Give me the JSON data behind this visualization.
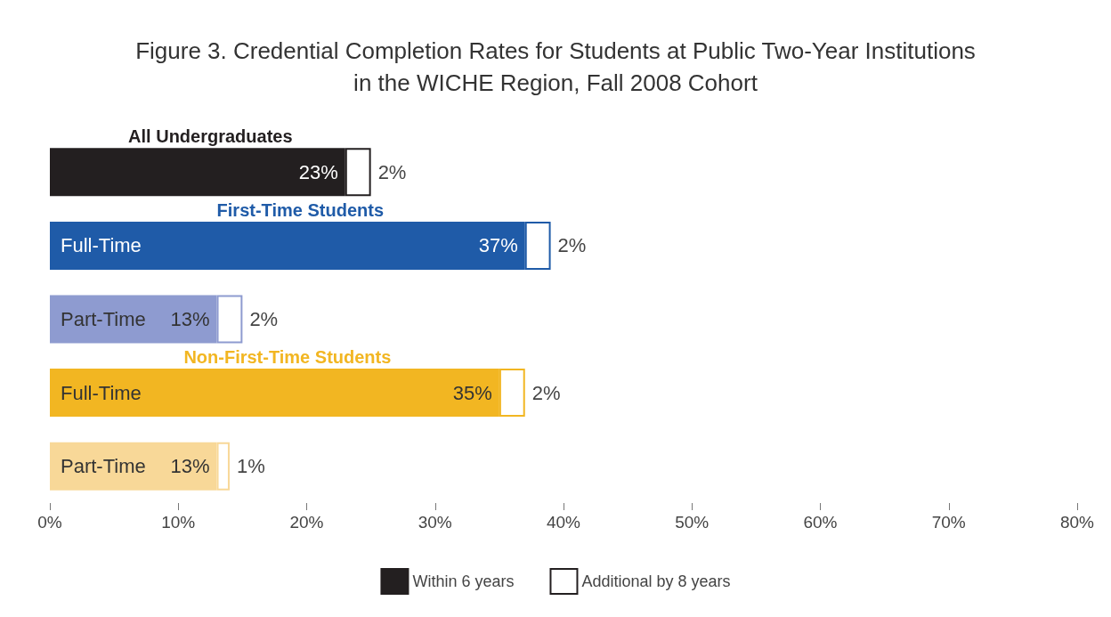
{
  "chart_data": {
    "type": "bar",
    "orientation": "horizontal",
    "stacked": true,
    "title": "Figure 3. Credential Completion Rates for Students at Public Two-Year Institutions\nin the WICHE Region, Fall 2008 Cohort",
    "categories": [
      null,
      "Full-Time",
      "Part-Time",
      "Full-Time",
      "Part-Time"
    ],
    "annotations": [
      "All Undergraduates",
      "First-Time Students",
      "Non-First-Time Students"
    ],
    "series": [
      {
        "name": "Within 6 years",
        "color": "#231f20",
        "colors": [
          "#231f20",
          "#1f5ba8",
          "#8e9bd0",
          "#f2b622",
          "#f8d898"
        ],
        "values": [
          23,
          37,
          13,
          35,
          13
        ],
        "value_labels": [
          "23%",
          "37%",
          "13%",
          "35%",
          "13%"
        ]
      },
      {
        "name": "Additional by 8 years",
        "color": "#ffffff",
        "values": [
          2,
          2,
          2,
          2,
          1
        ],
        "value_labels": [
          "2%",
          "2%",
          "2%",
          "2%",
          "1%"
        ]
      }
    ],
    "xlim": [
      0,
      80
    ],
    "xticks": [
      {
        "value": 0,
        "label": "0%"
      },
      {
        "value": 10,
        "label": "10%"
      },
      {
        "value": 20,
        "label": "20%"
      },
      {
        "value": 30,
        "label": "30%"
      },
      {
        "value": 40,
        "label": "40%"
      },
      {
        "value": 50,
        "label": "50%"
      },
      {
        "value": 60,
        "label": "60%"
      },
      {
        "value": 70,
        "label": "70%"
      },
      {
        "value": 80,
        "label": "80%"
      }
    ],
    "grid": false,
    "legend": "bottom"
  }
}
